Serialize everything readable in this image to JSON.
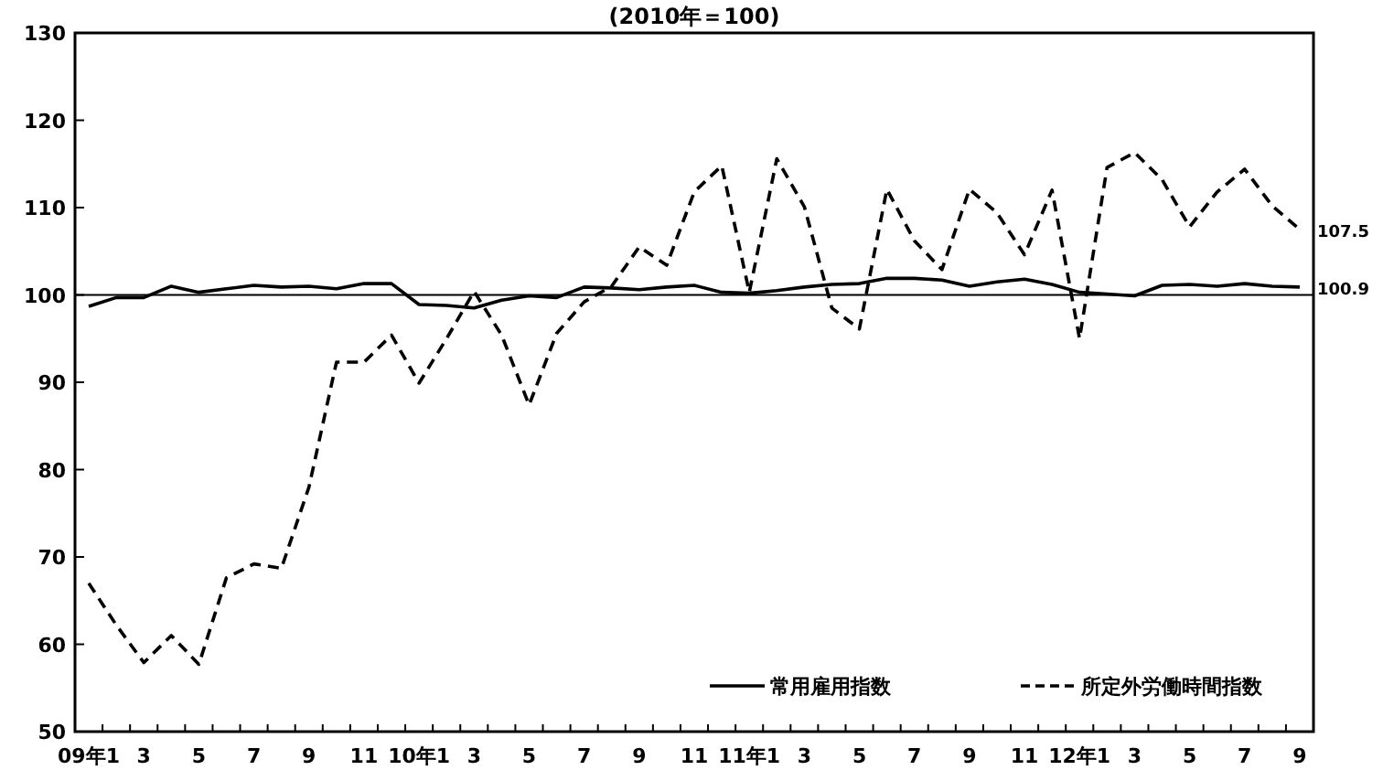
{
  "chart_data": {
    "type": "line",
    "title": "(2010年＝100)",
    "categories": [
      "09年1",
      null,
      "3",
      null,
      "5",
      null,
      "7",
      null,
      "9",
      null,
      "11",
      null,
      "10年1",
      null,
      "3",
      null,
      "5",
      null,
      "7",
      null,
      "9",
      null,
      "11",
      null,
      "11年1",
      null,
      "3",
      null,
      "5",
      null,
      "7",
      null,
      "9",
      null,
      "11",
      null,
      "12年1",
      null,
      "3",
      null,
      "5",
      null,
      "7",
      null,
      "9"
    ],
    "series": [
      {
        "name": "常用雇用指数",
        "color": "#000000",
        "line_style": "solid",
        "values": [
          98.7,
          99.7,
          99.7,
          101.0,
          100.3,
          100.7,
          101.1,
          100.9,
          101.0,
          100.7,
          101.3,
          101.3,
          98.9,
          98.8,
          98.5,
          99.4,
          99.9,
          99.7,
          100.9,
          100.8,
          100.6,
          100.9,
          101.1,
          100.3,
          100.2,
          100.5,
          100.9,
          101.2,
          101.3,
          101.9,
          101.9,
          101.7,
          101.0,
          101.5,
          101.8,
          101.2,
          100.3,
          100.1,
          99.9,
          101.1,
          101.2,
          101.0,
          101.3,
          101.0,
          100.9
        ],
        "value_labels": [
          null,
          null,
          null,
          null,
          null,
          null,
          null,
          null,
          null,
          null,
          null,
          null,
          null,
          null,
          null,
          null,
          null,
          null,
          null,
          null,
          null,
          null,
          null,
          null,
          null,
          null,
          null,
          null,
          null,
          null,
          null,
          null,
          null,
          null,
          null,
          null,
          null,
          null,
          null,
          null,
          null,
          null,
          null,
          null,
          "100.9"
        ]
      },
      {
        "name": "所定外労働時間指数",
        "color": "#000000",
        "line_style": "dashed",
        "values": [
          67.0,
          62.2,
          57.9,
          61.0,
          57.7,
          67.6,
          69.2,
          68.7,
          78.0,
          92.3,
          92.3,
          95.4,
          89.9,
          95.0,
          100.4,
          95.4,
          87.4,
          95.6,
          99.2,
          101.0,
          105.5,
          103.4,
          111.8,
          114.8,
          100.3,
          115.6,
          110.1,
          98.5,
          96.1,
          112.1,
          106.2,
          102.9,
          112.1,
          109.4,
          104.6,
          112.0,
          95.0,
          114.6,
          116.3,
          113.2,
          107.8,
          111.8,
          114.4,
          110.2,
          107.5
        ],
        "value_labels": [
          null,
          null,
          null,
          null,
          null,
          null,
          null,
          null,
          null,
          null,
          null,
          null,
          null,
          null,
          null,
          null,
          null,
          null,
          null,
          null,
          null,
          null,
          null,
          null,
          null,
          null,
          null,
          null,
          null,
          null,
          null,
          null,
          null,
          null,
          null,
          null,
          null,
          null,
          null,
          null,
          null,
          null,
          null,
          null,
          "107.5"
        ]
      }
    ],
    "ylim": [
      50,
      130
    ],
    "yticks": [
      50,
      60,
      70,
      80,
      90,
      100,
      110,
      120,
      130
    ],
    "ref_lines": [
      {
        "axis": "y",
        "value": 100,
        "color": "#000000"
      }
    ],
    "legend": "bottom right",
    "grid": false
  }
}
